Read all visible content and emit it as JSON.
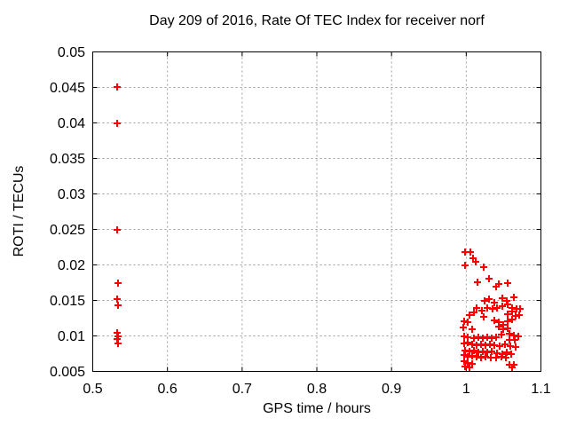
{
  "chart_data": {
    "type": "scatter",
    "title": "Day 209 of 2016, Rate Of TEC Index for receiver norf",
    "xlabel": "GPS time / hours",
    "ylabel": "ROTI / TECUs",
    "xlim": [
      0.5,
      1.1
    ],
    "ylim": [
      0.005,
      0.05
    ],
    "x_ticks": {
      "values": [
        0.5,
        0.6,
        0.7,
        0.8,
        0.9,
        1.0,
        1.1
      ],
      "labels": [
        "0.5",
        "0.6",
        "0.7",
        "0.8",
        "0.9",
        "1",
        "1.1"
      ]
    },
    "y_ticks": {
      "values": [
        0.005,
        0.01,
        0.015,
        0.02,
        0.025,
        0.03,
        0.035,
        0.04,
        0.045,
        0.05
      ],
      "labels": [
        "0.005",
        "0.01",
        "0.015",
        "0.02",
        "0.025",
        "0.03",
        "0.035",
        "0.04",
        "0.045",
        "0.05"
      ]
    },
    "grid": true,
    "legend": "none",
    "marker": {
      "shape": "plus",
      "color": "#ff0000",
      "size": 8,
      "stroke_width": 2
    },
    "colors": {
      "axis": "#000000",
      "grid": "#9e9e9e",
      "text": "#000000",
      "background": "#ffffff"
    },
    "series": [
      {
        "name": "ROTI",
        "points": [
          [
            0.533,
            0.0451
          ],
          [
            0.533,
            0.0399
          ],
          [
            0.533,
            0.025
          ],
          [
            0.534,
            0.0174
          ],
          [
            0.533,
            0.0152
          ],
          [
            0.534,
            0.0143
          ],
          [
            0.533,
            0.0104
          ],
          [
            0.534,
            0.01
          ],
          [
            0.533,
            0.0096
          ],
          [
            0.534,
            0.009
          ],
          [
            0.998,
            0.0218
          ],
          [
            1.005,
            0.0218
          ],
          [
            1.009,
            0.0209
          ],
          [
            1.013,
            0.0204
          ],
          [
            0.998,
            0.0199
          ],
          [
            1.023,
            0.0197
          ],
          [
            1.015,
            0.0176
          ],
          [
            1.03,
            0.0181
          ],
          [
            1.04,
            0.017
          ],
          [
            1.044,
            0.0173
          ],
          [
            1.056,
            0.0175
          ],
          [
            1.024,
            0.015
          ],
          [
            1.03,
            0.0152
          ],
          [
            1.038,
            0.0147
          ],
          [
            1.048,
            0.0153
          ],
          [
            1.054,
            0.015
          ],
          [
            1.064,
            0.0154
          ],
          [
            1.014,
            0.0139
          ],
          [
            1.021,
            0.0136
          ],
          [
            1.028,
            0.014
          ],
          [
            1.035,
            0.0138
          ],
          [
            1.041,
            0.014
          ],
          [
            1.048,
            0.0142
          ],
          [
            1.056,
            0.0144
          ],
          [
            1.061,
            0.014
          ],
          [
            1.067,
            0.0138
          ],
          [
            1.072,
            0.0138
          ],
          [
            1.004,
            0.013
          ],
          [
            1.01,
            0.0133
          ],
          [
            1.023,
            0.0127
          ],
          [
            1.056,
            0.0131
          ],
          [
            1.061,
            0.0134
          ],
          [
            1.066,
            0.0128
          ],
          [
            1.071,
            0.013
          ],
          [
            0.997,
            0.0121
          ],
          [
            1.002,
            0.0119
          ],
          [
            1.038,
            0.0122
          ],
          [
            1.044,
            0.0119
          ],
          [
            1.049,
            0.0116
          ],
          [
            1.056,
            0.0121
          ],
          [
            1.061,
            0.0123
          ],
          [
            0.996,
            0.0112
          ],
          [
            1.008,
            0.011
          ],
          [
            1.044,
            0.0113
          ],
          [
            1.05,
            0.0109
          ],
          [
            1.056,
            0.0111
          ],
          [
            0.997,
            0.01
          ],
          [
            1.002,
            0.0098
          ],
          [
            1.01,
            0.0097
          ],
          [
            1.016,
            0.0098
          ],
          [
            1.022,
            0.0097
          ],
          [
            1.028,
            0.0098
          ],
          [
            1.034,
            0.0097
          ],
          [
            1.04,
            0.0098
          ],
          [
            1.047,
            0.0102
          ],
          [
            1.058,
            0.0103
          ],
          [
            1.064,
            0.0101
          ],
          [
            1.07,
            0.01
          ],
          [
            1.058,
            0.0095
          ],
          [
            1.065,
            0.0094
          ],
          [
            0.997,
            0.009
          ],
          [
            1.002,
            0.0091
          ],
          [
            1.008,
            0.0088
          ],
          [
            1.014,
            0.0087
          ],
          [
            1.02,
            0.0088
          ],
          [
            1.026,
            0.0087
          ],
          [
            1.032,
            0.0088
          ],
          [
            1.038,
            0.0087
          ],
          [
            1.045,
            0.0086
          ],
          [
            1.052,
            0.0088
          ],
          [
            1.059,
            0.0086
          ],
          [
            1.066,
            0.0084
          ],
          [
            0.999,
            0.0079
          ],
          [
            1.004,
            0.0078
          ],
          [
            1.01,
            0.0079
          ],
          [
            1.016,
            0.0077
          ],
          [
            1.022,
            0.0078
          ],
          [
            1.028,
            0.0077
          ],
          [
            1.034,
            0.0078
          ],
          [
            1.041,
            0.0076
          ],
          [
            1.048,
            0.0075
          ],
          [
            1.054,
            0.0077
          ],
          [
            1.06,
            0.0075
          ],
          [
            0.997,
            0.0073
          ],
          [
            1.002,
            0.0071
          ],
          [
            1.008,
            0.0072
          ],
          [
            1.014,
            0.0071
          ],
          [
            1.02,
            0.007
          ],
          [
            1.026,
            0.0071
          ],
          [
            1.033,
            0.007
          ],
          [
            1.04,
            0.0069
          ],
          [
            1.047,
            0.0071
          ],
          [
            1.053,
            0.0069
          ],
          [
            0.997,
            0.0064
          ],
          [
            1.002,
            0.0062
          ],
          [
            1.008,
            0.0061
          ],
          [
            0.998,
            0.0057
          ],
          [
            1.004,
            0.0056
          ],
          [
            1.058,
            0.006
          ],
          [
            1.064,
            0.0059
          ],
          [
            1.061,
            0.0056
          ]
        ]
      }
    ]
  }
}
